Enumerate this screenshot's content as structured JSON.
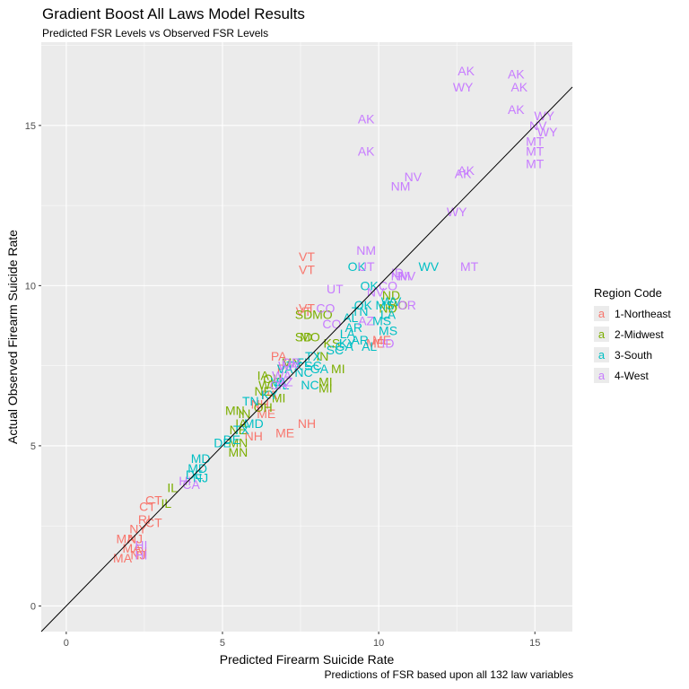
{
  "chart_data": {
    "type": "scatter",
    "title": "Gradient Boost All Laws Model Results",
    "subtitle": "Predicted FSR Levels vs Observed FSR Levels",
    "xlabel": "Predicted Firearm Suicide Rate",
    "ylabel": "Actual Observed Firearm Suicide Rate",
    "caption": "Predictions of FSR based upon all 132 law variables",
    "xlim": [
      -0.8,
      16.2
    ],
    "ylim": [
      -0.8,
      17.6
    ],
    "x_ticks": [
      0,
      5,
      10,
      15
    ],
    "y_ticks": [
      0,
      5,
      10,
      15
    ],
    "grid": true,
    "reference_line": {
      "slope": 1,
      "intercept": 0
    },
    "legend": {
      "title": "Region Code",
      "position": "right",
      "entries": [
        {
          "label": "1-Northeast",
          "color": "#F8766D"
        },
        {
          "label": "2-Midwest",
          "color": "#7CAE00"
        },
        {
          "label": "3-South",
          "color": "#00BFC4"
        },
        {
          "label": "4-West",
          "color": "#C77CFF"
        }
      ]
    },
    "series": [
      {
        "name": "1-Northeast",
        "color": "#F8766D",
        "points": [
          [
            "VT",
            7.7,
            10.9
          ],
          [
            "VT",
            7.7,
            10.5
          ],
          [
            "VT",
            7.7,
            9.3
          ],
          [
            "VT",
            7.6,
            9.2
          ],
          [
            "ME",
            10.1,
            8.3
          ],
          [
            "ME",
            9.9,
            8.2
          ],
          [
            "NH",
            7.7,
            5.7
          ],
          [
            "ME",
            7.0,
            5.4
          ],
          [
            "NH",
            6.0,
            5.3
          ],
          [
            "PA",
            6.8,
            7.8
          ],
          [
            "PA",
            7.0,
            7.4
          ],
          [
            "PA",
            6.5,
            6.6
          ],
          [
            "NH",
            6.2,
            6.3
          ],
          [
            "ME",
            6.4,
            6.0
          ],
          [
            "CT",
            2.8,
            3.3
          ],
          [
            "CT",
            2.6,
            3.1
          ],
          [
            "CT",
            2.8,
            2.6
          ],
          [
            "RI",
            2.5,
            2.7
          ],
          [
            "NY",
            2.3,
            2.4
          ],
          [
            "NJ",
            2.2,
            2.1
          ],
          [
            "MA",
            1.9,
            2.1
          ],
          [
            "MA",
            2.1,
            1.8
          ],
          [
            "RI",
            2.4,
            1.7
          ],
          [
            "NJ",
            2.3,
            1.6
          ],
          [
            "MA",
            1.8,
            1.5
          ]
        ]
      },
      {
        "name": "2-Midwest",
        "color": "#7CAE00",
        "points": [
          [
            "SD",
            7.6,
            9.1
          ],
          [
            "MO",
            8.2,
            9.1
          ],
          [
            "SD",
            7.6,
            8.4
          ],
          [
            "MO",
            7.8,
            8.4
          ],
          [
            "KS",
            8.5,
            8.2
          ],
          [
            "IN",
            8.2,
            7.8
          ],
          [
            "MI",
            8.7,
            7.4
          ],
          [
            "MI",
            8.3,
            7.0
          ],
          [
            "MI",
            8.3,
            6.8
          ],
          [
            "ND",
            10.4,
            9.7
          ],
          [
            "MO",
            10.6,
            9.4
          ],
          [
            "ND",
            10.3,
            9.3
          ],
          [
            "MN",
            7.2,
            7.6
          ],
          [
            "IA",
            6.3,
            7.2
          ],
          [
            "OH",
            6.6,
            7.1
          ],
          [
            "WI",
            6.4,
            6.9
          ],
          [
            "NE",
            6.3,
            6.7
          ],
          [
            "MI",
            6.8,
            6.5
          ],
          [
            "MN",
            5.4,
            6.1
          ],
          [
            "IN",
            5.7,
            6.0
          ],
          [
            "OH",
            6.3,
            6.2
          ],
          [
            "IA",
            5.6,
            5.7
          ],
          [
            "NE",
            5.5,
            5.5
          ],
          [
            "MN",
            5.5,
            5.1
          ],
          [
            "MN",
            5.5,
            4.8
          ],
          [
            "IL",
            3.4,
            3.7
          ],
          [
            "IL",
            3.2,
            3.2
          ]
        ]
      },
      {
        "name": "3-South",
        "color": "#00BFC4",
        "points": [
          [
            "OK",
            9.3,
            10.6
          ],
          [
            "WV",
            11.6,
            10.6
          ],
          [
            "OK",
            9.7,
            10.0
          ],
          [
            "OK",
            9.5,
            9.4
          ],
          [
            "TN",
            9.4,
            9.2
          ],
          [
            "AL",
            9.1,
            9.0
          ],
          [
            "MS",
            10.2,
            9.4
          ],
          [
            "MS",
            10.1,
            8.9
          ],
          [
            "MS",
            10.3,
            8.6
          ],
          [
            "AR",
            9.2,
            8.7
          ],
          [
            "AR",
            9.4,
            8.3
          ],
          [
            "LA",
            9.0,
            8.5
          ],
          [
            "KY",
            9.0,
            8.2
          ],
          [
            "SC",
            8.6,
            8.0
          ],
          [
            "GA",
            8.9,
            8.1
          ],
          [
            "TX",
            7.9,
            7.8
          ],
          [
            "TX",
            7.3,
            7.5
          ],
          [
            "FL",
            7.6,
            7.6
          ],
          [
            "NC",
            7.6,
            7.3
          ],
          [
            "VA",
            7.0,
            7.4
          ],
          [
            "VA",
            6.8,
            7.0
          ],
          [
            "SC",
            7.9,
            7.5
          ],
          [
            "GA",
            8.1,
            7.4
          ],
          [
            "NC",
            7.8,
            6.9
          ],
          [
            "FL",
            6.9,
            6.9
          ],
          [
            "KY",
            6.5,
            6.6
          ],
          [
            "TN",
            5.9,
            6.4
          ],
          [
            "MD",
            6.0,
            5.7
          ],
          [
            "DE",
            5.3,
            5.2
          ],
          [
            "DE",
            5.0,
            5.1
          ],
          [
            "TX",
            5.6,
            5.5
          ],
          [
            "MD",
            4.3,
            4.6
          ],
          [
            "MD",
            4.2,
            4.3
          ],
          [
            "DE",
            4.1,
            4.1
          ],
          [
            "NJ",
            4.3,
            4.0
          ],
          [
            "AL",
            9.7,
            8.1
          ],
          [
            "WV",
            10.4,
            9.5
          ],
          [
            "LA",
            10.3,
            9.1
          ]
        ]
      },
      {
        "name": "4-West",
        "color": "#C77CFF",
        "points": [
          [
            "AK",
            12.8,
            16.7
          ],
          [
            "WY",
            12.7,
            16.2
          ],
          [
            "AK",
            14.4,
            16.6
          ],
          [
            "AK",
            14.5,
            16.2
          ],
          [
            "AK",
            14.4,
            15.5
          ],
          [
            "AK",
            9.6,
            15.2
          ],
          [
            "WY",
            15.3,
            15.3
          ],
          [
            "NV",
            15.1,
            15.0
          ],
          [
            "WY",
            15.4,
            14.8
          ],
          [
            "MT",
            15.0,
            14.5
          ],
          [
            "MT",
            15.0,
            14.2
          ],
          [
            "AK",
            9.6,
            14.2
          ],
          [
            "MT",
            15.0,
            13.8
          ],
          [
            "AK",
            12.8,
            13.6
          ],
          [
            "AK",
            12.7,
            13.5
          ],
          [
            "NV",
            11.1,
            13.4
          ],
          [
            "NM",
            10.7,
            13.1
          ],
          [
            "WY",
            12.5,
            12.3
          ],
          [
            "NM",
            9.6,
            11.1
          ],
          [
            "UT",
            9.6,
            10.6
          ],
          [
            "MT",
            12.9,
            10.6
          ],
          [
            "ID",
            10.6,
            10.4
          ],
          [
            "NV",
            10.9,
            10.3
          ],
          [
            "NM",
            10.7,
            10.3
          ],
          [
            "CO",
            10.3,
            10.0
          ],
          [
            "OR",
            10.9,
            9.4
          ],
          [
            "CO",
            8.3,
            9.3
          ],
          [
            "UT",
            8.6,
            9.9
          ],
          [
            "ID",
            10.3,
            8.2
          ],
          [
            "AZ",
            9.6,
            8.9
          ],
          [
            "CO",
            8.5,
            8.8
          ],
          [
            "OR",
            7.2,
            7.6
          ],
          [
            "WA",
            7.1,
            7.5
          ],
          [
            "WA",
            6.9,
            7.2
          ],
          [
            "AZ",
            7.0,
            7.0
          ],
          [
            "CA",
            6.8,
            6.9
          ],
          [
            "HI",
            3.8,
            3.9
          ],
          [
            "CA",
            4.0,
            3.8
          ],
          [
            "HI",
            2.4,
            1.9
          ],
          [
            "HI",
            2.4,
            1.6
          ],
          [
            "NV",
            9.9,
            9.8
          ]
        ]
      }
    ]
  }
}
